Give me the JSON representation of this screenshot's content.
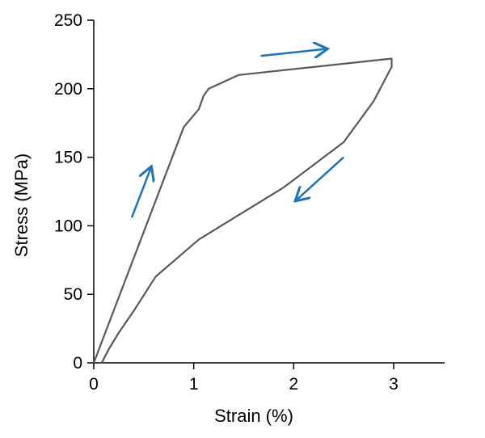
{
  "chart_data": {
    "type": "line",
    "title": "",
    "xlabel": "Strain (%)",
    "ylabel": "Stress (MPa)",
    "xlim": [
      0,
      3.5
    ],
    "ylim": [
      0,
      250
    ],
    "x_ticks": [
      0,
      1,
      2,
      3
    ],
    "y_ticks": [
      0,
      50,
      100,
      150,
      200,
      250
    ],
    "grid": false,
    "legend": "none",
    "series": [
      {
        "color": "#595959",
        "x": [
          0.0,
          0.9,
          1.05,
          1.1,
          1.15,
          1.45,
          2.98,
          2.98,
          2.8,
          2.5,
          1.9,
          1.05,
          0.62,
          0.4,
          0.25,
          0.15,
          0.08
        ],
        "y": [
          0,
          172,
          185,
          195,
          200,
          210,
          222,
          216,
          191,
          161,
          128,
          90,
          63,
          38,
          22,
          10,
          0
        ]
      }
    ],
    "annotations": [
      {
        "type": "arrow",
        "direction": "loading",
        "color": "#1a73c0",
        "from": [
          0.38,
          106
        ],
        "to": [
          0.57,
          142
        ]
      },
      {
        "type": "arrow",
        "direction": "plateau",
        "color": "#1a73c0",
        "from": [
          1.67,
          224
        ],
        "to": [
          2.32,
          229
        ]
      },
      {
        "type": "arrow",
        "direction": "unloading",
        "color": "#1a73c0",
        "from": [
          2.5,
          150
        ],
        "to": [
          2.03,
          119
        ]
      }
    ]
  }
}
